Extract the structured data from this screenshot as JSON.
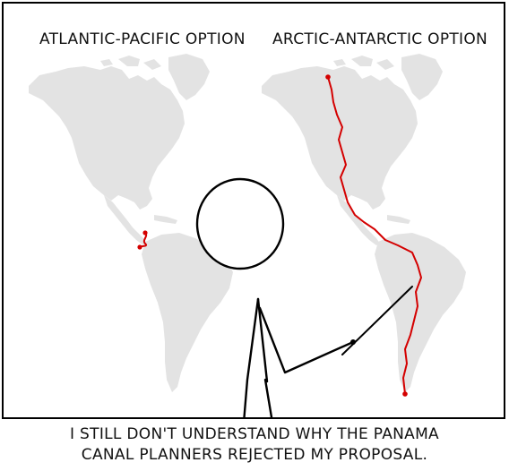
{
  "panel": {
    "left_map_title": "ATLANTIC-PACIFIC OPTION",
    "right_map_title": "ARCTIC-ANTARCTIC OPTION"
  },
  "caption": {
    "line1": "I STILL DON'T UNDERSTAND WHY THE PANAMA",
    "line2": "CANAL PLANNERS REJECTED MY PROPOSAL."
  },
  "colors": {
    "land": "#e3e3e3",
    "canal": "#d40000",
    "ink": "#000000"
  }
}
